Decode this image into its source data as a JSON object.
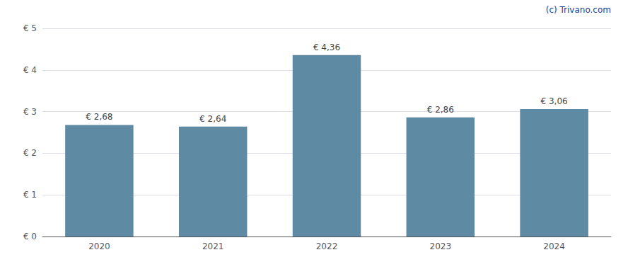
{
  "chart_data": {
    "type": "bar",
    "categories": [
      "2020",
      "2021",
      "2022",
      "2023",
      "2024"
    ],
    "values": [
      2.68,
      2.64,
      4.36,
      2.86,
      3.06
    ],
    "value_labels": [
      "€ 2,68",
      "€ 2,64",
      "€ 4,36",
      "€ 2,86",
      "€ 3,06"
    ],
    "data_labels": true,
    "color": "#5f8aa3",
    "ylim": [
      0,
      5
    ],
    "yticks": [
      {
        "value": 0,
        "label": "€ 0"
      },
      {
        "value": 1,
        "label": "€ 1"
      },
      {
        "value": 2,
        "label": "€ 2"
      },
      {
        "value": 3,
        "label": "€ 3"
      },
      {
        "value": 4,
        "label": "€ 4"
      },
      {
        "value": 5,
        "label": "€ 5"
      }
    ],
    "grid": true,
    "annotations": [
      {
        "text": "(c) Trivano.com",
        "color": "#1a3a9e"
      }
    ]
  }
}
